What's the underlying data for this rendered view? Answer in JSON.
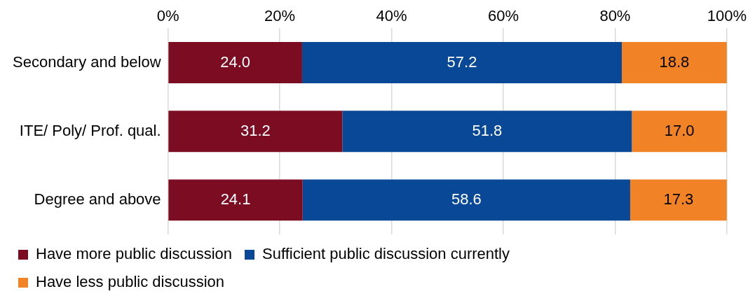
{
  "chart_data": {
    "type": "bar",
    "orientation": "horizontal",
    "stacked": true,
    "categories": [
      "Secondary and below",
      "ITE/ Poly/ Prof. qual.",
      "Degree and above"
    ],
    "series": [
      {
        "name": "Have more public discussion",
        "color": "#7b0c22",
        "values": [
          24.0,
          31.2,
          24.1
        ],
        "value_labels": [
          "24.0",
          "31.2",
          "24.1"
        ]
      },
      {
        "name": "Sufficient public discussion currently",
        "color": "#084896",
        "values": [
          57.2,
          51.8,
          58.6
        ],
        "value_labels": [
          "57.2",
          "51.8",
          "58.6"
        ]
      },
      {
        "name": "Have less public discussion",
        "color": "#f28226",
        "values": [
          18.8,
          17.0,
          17.3
        ],
        "value_labels": [
          "18.8",
          "17.0",
          "17.3"
        ]
      }
    ],
    "xlim": [
      0,
      100
    ],
    "xticks": [
      {
        "value": 0,
        "label": "0%"
      },
      {
        "value": 20,
        "label": "20%"
      },
      {
        "value": 40,
        "label": "40%"
      },
      {
        "value": 60,
        "label": "60%"
      },
      {
        "value": 80,
        "label": "80%"
      },
      {
        "value": 100,
        "label": "100%"
      }
    ],
    "grid": "x",
    "legend": "bottom"
  }
}
